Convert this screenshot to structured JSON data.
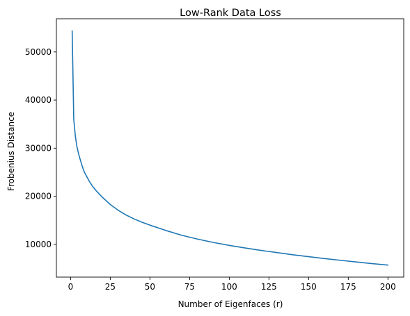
{
  "chart_data": {
    "type": "line",
    "title": "Low-Rank Data Loss",
    "xlabel": "Number of Eigenfaces (r)",
    "ylabel": "Frobenius Distance",
    "xlim": [
      -8.95,
      209.95
    ],
    "ylim": [
      3200,
      56900
    ],
    "x_ticks": [
      0,
      25,
      50,
      75,
      100,
      125,
      150,
      175,
      200
    ],
    "y_ticks": [
      10000,
      20000,
      30000,
      40000,
      50000
    ],
    "grid": false,
    "legend": "none",
    "series": [
      {
        "color": "#1f77b4",
        "x": [
          1,
          2,
          3,
          4,
          5,
          6,
          7,
          8,
          9,
          10,
          12,
          14,
          16,
          18,
          20,
          25,
          30,
          35,
          40,
          45,
          50,
          60,
          70,
          80,
          90,
          100,
          110,
          120,
          130,
          140,
          150,
          160,
          170,
          180,
          190,
          200
        ],
        "y": [
          54400,
          36000,
          32500,
          30300,
          28900,
          27700,
          26600,
          25600,
          24800,
          24200,
          23000,
          22000,
          21200,
          20500,
          19800,
          18300,
          17100,
          16100,
          15300,
          14600,
          14000,
          12900,
          11900,
          11100,
          10400,
          9800,
          9250,
          8750,
          8300,
          7850,
          7450,
          7050,
          6700,
          6350,
          6000,
          5700
        ]
      }
    ]
  }
}
